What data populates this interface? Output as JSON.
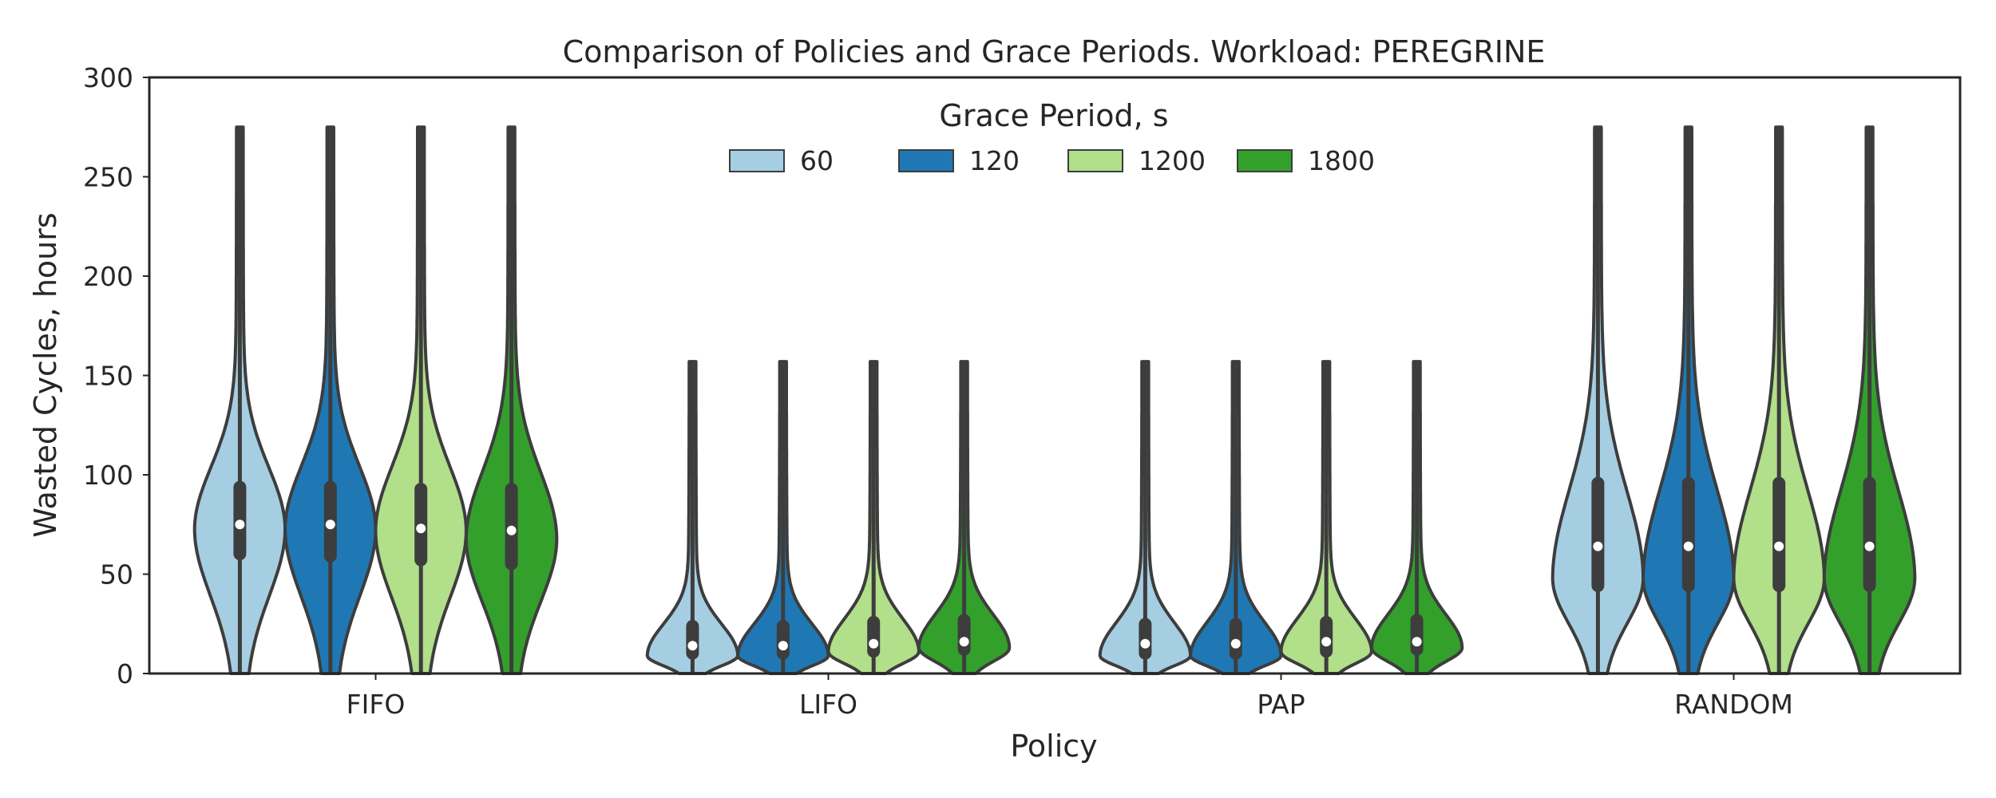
{
  "chart_data": {
    "type": "violin",
    "title": "Comparison of Policies and Grace Periods. Workload: PEREGRINE",
    "xlabel": "Policy",
    "ylabel": "Wasted Cycles, hours",
    "ylim": [
      0,
      300
    ],
    "yticks": [
      0,
      50,
      100,
      150,
      200,
      250,
      300
    ],
    "categories": [
      "FIFO",
      "LIFO",
      "PAP",
      "RANDOM"
    ],
    "legend": {
      "title": "Grace Period, s",
      "placement": "top-center",
      "ncol": 4
    },
    "grid": false,
    "series": [
      {
        "name": "60",
        "color": "#a6cee3",
        "stats": [
          {
            "min": 0,
            "max": 275,
            "q1": 57,
            "median": 75,
            "q3": 97,
            "mode": 73
          },
          {
            "min": 0,
            "max": 157,
            "q1": 7,
            "median": 14,
            "q3": 27,
            "mode": 9
          },
          {
            "min": 0,
            "max": 157,
            "q1": 7,
            "median": 15,
            "q3": 28,
            "mode": 9
          },
          {
            "min": 0,
            "max": 275,
            "q1": 41,
            "median": 64,
            "q3": 99,
            "mode": 48
          }
        ]
      },
      {
        "name": "120",
        "color": "#1f78b4",
        "stats": [
          {
            "min": 0,
            "max": 275,
            "q1": 56,
            "median": 75,
            "q3": 97,
            "mode": 73
          },
          {
            "min": 0,
            "max": 157,
            "q1": 7,
            "median": 14,
            "q3": 27,
            "mode": 9
          },
          {
            "min": 0,
            "max": 157,
            "q1": 7,
            "median": 15,
            "q3": 28,
            "mode": 9
          },
          {
            "min": 0,
            "max": 275,
            "q1": 41,
            "median": 64,
            "q3": 99,
            "mode": 48
          }
        ]
      },
      {
        "name": "1200",
        "color": "#b2df8a",
        "stats": [
          {
            "min": 0,
            "max": 275,
            "q1": 54,
            "median": 73,
            "q3": 96,
            "mode": 72
          },
          {
            "min": 0,
            "max": 157,
            "q1": 8,
            "median": 15,
            "q3": 29,
            "mode": 11
          },
          {
            "min": 0,
            "max": 157,
            "q1": 8,
            "median": 16,
            "q3": 29,
            "mode": 11
          },
          {
            "min": 0,
            "max": 275,
            "q1": 41,
            "median": 64,
            "q3": 99,
            "mode": 48
          }
        ]
      },
      {
        "name": "1800",
        "color": "#33a02c",
        "stats": [
          {
            "min": 0,
            "max": 275,
            "q1": 52,
            "median": 72,
            "q3": 96,
            "mode": 68
          },
          {
            "min": 0,
            "max": 157,
            "q1": 9,
            "median": 16,
            "q3": 30,
            "mode": 13
          },
          {
            "min": 0,
            "max": 157,
            "q1": 9,
            "median": 16,
            "q3": 30,
            "mode": 13
          },
          {
            "min": 0,
            "max": 275,
            "q1": 41,
            "median": 64,
            "q3": 99,
            "mode": 48
          }
        ]
      }
    ]
  }
}
